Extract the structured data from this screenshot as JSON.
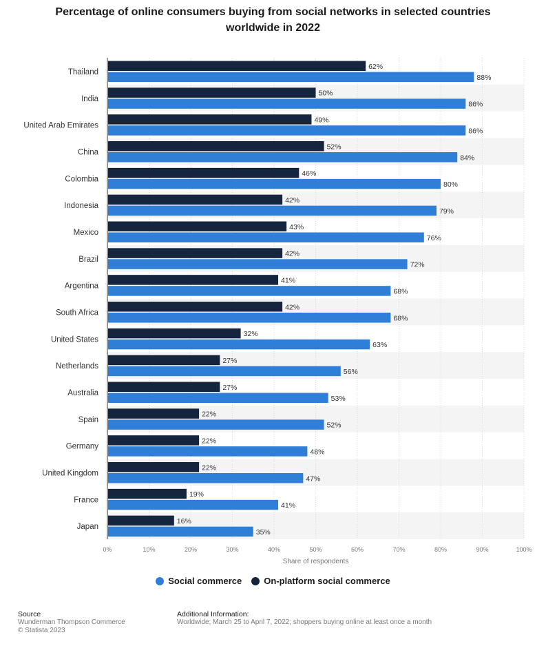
{
  "chart_data": {
    "type": "bar",
    "orientation": "horizontal",
    "title": "Percentage of online consumers buying from social networks in selected countries worldwide in 2022",
    "xlabel": "Share of respondents",
    "xlim": [
      0,
      100
    ],
    "xticks": [
      "0%",
      "10%",
      "20%",
      "30%",
      "40%",
      "50%",
      "60%",
      "70%",
      "80%",
      "90%",
      "100%"
    ],
    "categories": [
      "Thailand",
      "India",
      "United Arab Emirates",
      "China",
      "Colombia",
      "Indonesia",
      "Mexico",
      "Brazil",
      "Argentina",
      "South Africa",
      "United States",
      "Netherlands",
      "Australia",
      "Spain",
      "Germany",
      "United Kingdom",
      "France",
      "Japan"
    ],
    "series": [
      {
        "name": "On-platform social commerce",
        "color": "#14253d",
        "values": [
          62,
          50,
          49,
          52,
          46,
          42,
          43,
          42,
          41,
          42,
          32,
          27,
          27,
          22,
          22,
          22,
          19,
          16
        ]
      },
      {
        "name": "Social commerce",
        "color": "#2f7ed8",
        "values": [
          88,
          86,
          86,
          84,
          80,
          79,
          76,
          72,
          68,
          68,
          63,
          56,
          53,
          52,
          48,
          47,
          41,
          35
        ]
      }
    ],
    "legend": [
      "Social commerce",
      "On-platform social commerce"
    ]
  },
  "legend": {
    "social_label": "Social commerce",
    "social_color": "#2f7ed8",
    "onplatform_label": "On-platform social commerce",
    "onplatform_color": "#14253d"
  },
  "footer": {
    "source_head": "Source",
    "source_line1": "Wunderman Thompson Commerce",
    "source_line2": "© Statista 2023",
    "info_head": "Additional Information:",
    "info_text": "Worldwide; March 25 to April 7, 2022; shoppers buying online at least once a month"
  }
}
